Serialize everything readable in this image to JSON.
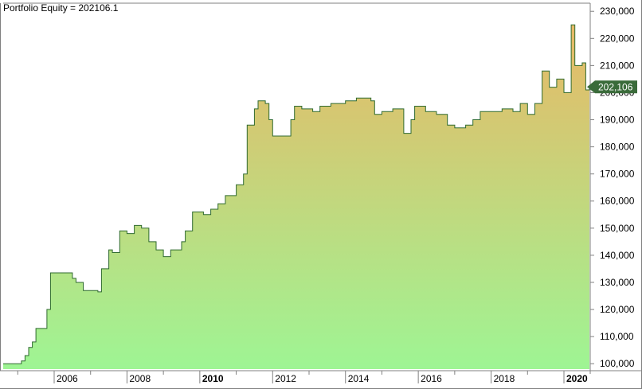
{
  "chart_data": {
    "type": "area",
    "title": "Portfolio Equity = 202106.1",
    "xlabel": "",
    "ylabel": "",
    "xlim": [
      2004.6,
      2020.7
    ],
    "ylim": [
      98000,
      233000
    ],
    "y_ticks": [
      {
        "value": 100000,
        "label": "100,000"
      },
      {
        "value": 110000,
        "label": "110,000"
      },
      {
        "value": 120000,
        "label": "120,000"
      },
      {
        "value": 130000,
        "label": "130,000"
      },
      {
        "value": 140000,
        "label": "140,000"
      },
      {
        "value": 150000,
        "label": "150,000"
      },
      {
        "value": 160000,
        "label": "160,000"
      },
      {
        "value": 170000,
        "label": "170,000"
      },
      {
        "value": 180000,
        "label": "180,000"
      },
      {
        "value": 190000,
        "label": "190,000"
      },
      {
        "value": 200000,
        "label": "200,000"
      },
      {
        "value": 210000,
        "label": "210,000"
      },
      {
        "value": 220000,
        "label": "220,000"
      },
      {
        "value": 230000,
        "label": "230,000"
      }
    ],
    "x_ticks": [
      {
        "value": 2006,
        "label": "2006",
        "bold": false
      },
      {
        "value": 2008,
        "label": "2008",
        "bold": false
      },
      {
        "value": 2010,
        "label": "2010",
        "bold": true
      },
      {
        "value": 2012,
        "label": "2012",
        "bold": false
      },
      {
        "value": 2014,
        "label": "2014",
        "bold": false
      },
      {
        "value": 2016,
        "label": "2016",
        "bold": false
      },
      {
        "value": 2018,
        "label": "2018",
        "bold": false
      },
      {
        "value": 2020,
        "label": "2020",
        "bold": true
      }
    ],
    "x_minor_ticks": [
      2005,
      2007,
      2009,
      2011,
      2013,
      2015,
      2017,
      2019
    ],
    "last_value": {
      "value": 202106,
      "label": "202,106"
    },
    "colors": {
      "line": "#2f6a2f",
      "fill_top": "#e8b866",
      "fill_bottom": "#9ef594",
      "badge": "#3a6b3a",
      "axis": "#808080"
    },
    "series": [
      {
        "values": [
          [
            2004.6,
            100000
          ],
          [
            2005.05,
            100000
          ],
          [
            2005.1,
            101000
          ],
          [
            2005.2,
            103000
          ],
          [
            2005.3,
            106000
          ],
          [
            2005.4,
            108000
          ],
          [
            2005.5,
            113000
          ],
          [
            2005.7,
            113000
          ],
          [
            2005.8,
            120000
          ],
          [
            2005.9,
            133500
          ],
          [
            2006.3,
            133500
          ],
          [
            2006.5,
            131500
          ],
          [
            2006.6,
            130000
          ],
          [
            2006.8,
            127000
          ],
          [
            2007.2,
            126500
          ],
          [
            2007.3,
            135000
          ],
          [
            2007.5,
            142000
          ],
          [
            2007.6,
            141000
          ],
          [
            2007.8,
            149000
          ],
          [
            2008.0,
            148000
          ],
          [
            2008.2,
            151000
          ],
          [
            2008.4,
            150000
          ],
          [
            2008.6,
            145000
          ],
          [
            2008.8,
            142000
          ],
          [
            2009.0,
            139500
          ],
          [
            2009.2,
            142000
          ],
          [
            2009.5,
            145000
          ],
          [
            2009.6,
            149000
          ],
          [
            2009.8,
            156000
          ],
          [
            2010.1,
            155000
          ],
          [
            2010.3,
            157000
          ],
          [
            2010.5,
            159000
          ],
          [
            2010.7,
            162000
          ],
          [
            2010.9,
            162000
          ],
          [
            2011.0,
            166000
          ],
          [
            2011.2,
            170000
          ],
          [
            2011.3,
            188000
          ],
          [
            2011.5,
            194000
          ],
          [
            2011.6,
            197000
          ],
          [
            2011.8,
            196000
          ],
          [
            2011.9,
            190000
          ],
          [
            2012.0,
            184000
          ],
          [
            2012.4,
            184000
          ],
          [
            2012.5,
            190000
          ],
          [
            2012.6,
            195000
          ],
          [
            2012.8,
            194000
          ],
          [
            2013.1,
            193000
          ],
          [
            2013.3,
            195000
          ],
          [
            2013.6,
            196000
          ],
          [
            2014.0,
            197000
          ],
          [
            2014.3,
            198000
          ],
          [
            2014.7,
            197000
          ],
          [
            2014.8,
            192000
          ],
          [
            2015.0,
            193000
          ],
          [
            2015.3,
            194000
          ],
          [
            2015.6,
            185000
          ],
          [
            2015.8,
            190000
          ],
          [
            2015.9,
            195000
          ],
          [
            2016.2,
            193000
          ],
          [
            2016.5,
            192000
          ],
          [
            2016.8,
            188000
          ],
          [
            2017.0,
            187000
          ],
          [
            2017.3,
            188000
          ],
          [
            2017.5,
            190000
          ],
          [
            2017.7,
            193000
          ],
          [
            2018.0,
            193000
          ],
          [
            2018.3,
            194000
          ],
          [
            2018.6,
            193000
          ],
          [
            2018.8,
            196000
          ],
          [
            2019.0,
            192000
          ],
          [
            2019.2,
            196000
          ],
          [
            2019.4,
            208000
          ],
          [
            2019.6,
            202000
          ],
          [
            2019.8,
            205000
          ],
          [
            2020.0,
            200000
          ],
          [
            2020.15,
            200000
          ],
          [
            2020.2,
            225000
          ],
          [
            2020.3,
            210000
          ],
          [
            2020.5,
            211000
          ],
          [
            2020.6,
            201000
          ],
          [
            2020.7,
            202106
          ]
        ]
      }
    ]
  }
}
